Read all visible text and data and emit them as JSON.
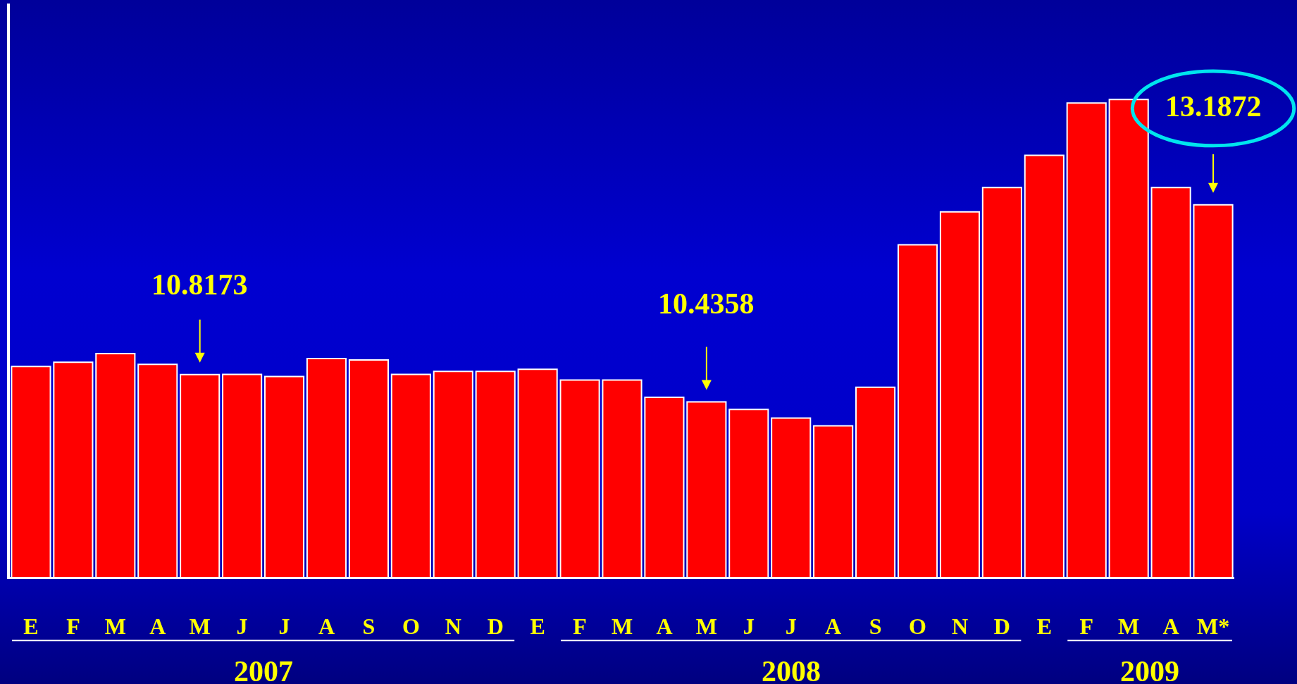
{
  "chart_data": {
    "type": "bar",
    "categories": [
      "E",
      "F",
      "M",
      "A",
      "M",
      "J",
      "J",
      "A",
      "S",
      "O",
      "N",
      "D",
      "E",
      "F",
      "M",
      "A",
      "M",
      "J",
      "J",
      "A",
      "S",
      "O",
      "N",
      "D",
      "E",
      "F",
      "M",
      "A",
      "M*"
    ],
    "values": [
      10.93,
      10.99,
      11.11,
      10.96,
      10.8173,
      10.82,
      10.79,
      11.04,
      11.02,
      10.82,
      10.86,
      10.86,
      10.89,
      10.74,
      10.74,
      10.5,
      10.4358,
      10.33,
      10.21,
      10.1,
      10.64,
      12.63,
      13.09,
      13.43,
      13.88,
      14.61,
      14.66,
      13.43,
      13.1872
    ],
    "value_labels": [
      null,
      null,
      null,
      null,
      "10.8173",
      null,
      null,
      null,
      null,
      null,
      null,
      null,
      null,
      null,
      null,
      null,
      "10.4358",
      null,
      null,
      null,
      null,
      null,
      null,
      null,
      null,
      null,
      null,
      null,
      "13.1872"
    ],
    "color": "#ff0000",
    "ylim": [
      7.99,
      16.0
    ],
    "tick_labels": "x",
    "annotations": [
      "2007",
      "2008",
      "2009"
    ]
  }
}
